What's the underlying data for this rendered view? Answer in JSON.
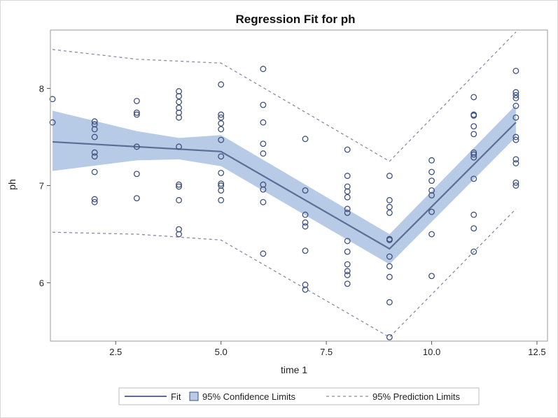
{
  "chart_data": {
    "type": "scatter",
    "title": "Regression Fit for ph",
    "xlabel": "time 1",
    "ylabel": "ph",
    "xlim": [
      0.95,
      12.75
    ],
    "ylim": [
      5.4,
      8.6
    ],
    "x_ticks": [
      2.5,
      5.0,
      7.5,
      10.0,
      12.5
    ],
    "x_tick_labels": [
      "2.5",
      "5.0",
      "7.5",
      "10.0",
      "12.5"
    ],
    "y_ticks": [
      6,
      7,
      8
    ],
    "y_tick_labels": [
      "6",
      "7",
      "8"
    ],
    "grid": false,
    "legend_position": "bottom",
    "colors": {
      "fit": "#5b6f96",
      "confidence": "#b7cbe6",
      "prediction": "#8a8aa8",
      "points": "#3e507c"
    },
    "knots_x": [
      1,
      3,
      5,
      9,
      12
    ],
    "series": [
      {
        "name": "Fit",
        "kind": "line",
        "x": [
          1,
          3,
          5,
          9,
          12
        ],
        "y": [
          7.45,
          7.4,
          7.35,
          6.35,
          7.65
        ]
      },
      {
        "name": "95% Confidence Limits",
        "kind": "band",
        "x": [
          1,
          3,
          4,
          5,
          9,
          12
        ],
        "lower": [
          7.15,
          7.26,
          7.27,
          7.2,
          6.19,
          7.5
        ],
        "upper": [
          7.77,
          7.56,
          7.49,
          7.52,
          6.5,
          7.83
        ]
      },
      {
        "name": "95% Prediction Limits",
        "kind": "dashed",
        "x": [
          1,
          3,
          5,
          9,
          12
        ],
        "lower": [
          6.52,
          6.5,
          6.44,
          5.44,
          6.76
        ],
        "upper": [
          8.4,
          8.3,
          8.26,
          7.25,
          8.58
        ]
      },
      {
        "name": "observations",
        "kind": "scatter",
        "points": [
          [
            1,
            7.89
          ],
          [
            1,
            7.65
          ],
          [
            2,
            7.66
          ],
          [
            2,
            7.63
          ],
          [
            2,
            7.58
          ],
          [
            2,
            7.5
          ],
          [
            2,
            7.34
          ],
          [
            2,
            7.3
          ],
          [
            2,
            7.14
          ],
          [
            2,
            6.86
          ],
          [
            2,
            6.83
          ],
          [
            3,
            7.87
          ],
          [
            3,
            7.75
          ],
          [
            3,
            7.73
          ],
          [
            3,
            7.4
          ],
          [
            3,
            7.12
          ],
          [
            3,
            6.87
          ],
          [
            4,
            7.97
          ],
          [
            4,
            7.92
          ],
          [
            4,
            7.86
          ],
          [
            4,
            7.8
          ],
          [
            4,
            7.75
          ],
          [
            4,
            7.7
          ],
          [
            4,
            7.4
          ],
          [
            4,
            7.01
          ],
          [
            4,
            6.99
          ],
          [
            4,
            6.85
          ],
          [
            4,
            6.55
          ],
          [
            4,
            6.5
          ],
          [
            5,
            8.04
          ],
          [
            5,
            7.73
          ],
          [
            5,
            7.7
          ],
          [
            5,
            7.64
          ],
          [
            5,
            7.58
          ],
          [
            5,
            7.47
          ],
          [
            5,
            7.3
          ],
          [
            5,
            7.13
          ],
          [
            5,
            7.02
          ],
          [
            5,
            7.0
          ],
          [
            5,
            6.95
          ],
          [
            5,
            6.85
          ],
          [
            6,
            8.2
          ],
          [
            6,
            7.83
          ],
          [
            6,
            7.65
          ],
          [
            6,
            7.43
          ],
          [
            6,
            7.33
          ],
          [
            6,
            7.01
          ],
          [
            6,
            6.96
          ],
          [
            6,
            6.83
          ],
          [
            6,
            6.3
          ],
          [
            7,
            7.48
          ],
          [
            7,
            6.95
          ],
          [
            7,
            6.7
          ],
          [
            7,
            6.62
          ],
          [
            7,
            6.58
          ],
          [
            7,
            6.33
          ],
          [
            7,
            5.98
          ],
          [
            7,
            5.93
          ],
          [
            8,
            7.37
          ],
          [
            8,
            7.1
          ],
          [
            8,
            6.99
          ],
          [
            8,
            6.94
          ],
          [
            8,
            6.88
          ],
          [
            8,
            6.76
          ],
          [
            8,
            6.72
          ],
          [
            8,
            6.43
          ],
          [
            8,
            6.32
          ],
          [
            8,
            6.19
          ],
          [
            8,
            6.12
          ],
          [
            8,
            6.08
          ],
          [
            8,
            5.99
          ],
          [
            9,
            7.1
          ],
          [
            9,
            6.85
          ],
          [
            9,
            6.78
          ],
          [
            9,
            6.72
          ],
          [
            9,
            6.45
          ],
          [
            9,
            6.44
          ],
          [
            9,
            6.27
          ],
          [
            9,
            6.17
          ],
          [
            9,
            6.06
          ],
          [
            9,
            5.8
          ],
          [
            9,
            5.44
          ],
          [
            10,
            7.26
          ],
          [
            10,
            7.14
          ],
          [
            10,
            7.05
          ],
          [
            10,
            6.95
          ],
          [
            10,
            6.9
          ],
          [
            10,
            6.73
          ],
          [
            10,
            6.5
          ],
          [
            10,
            6.07
          ],
          [
            11,
            7.91
          ],
          [
            11,
            7.73
          ],
          [
            11,
            7.72
          ],
          [
            11,
            7.61
          ],
          [
            11,
            7.53
          ],
          [
            11,
            7.34
          ],
          [
            11,
            7.32
          ],
          [
            11,
            7.29
          ],
          [
            11,
            7.07
          ],
          [
            11,
            6.7
          ],
          [
            11,
            6.56
          ],
          [
            11,
            6.32
          ],
          [
            12,
            8.18
          ],
          [
            12,
            7.96
          ],
          [
            12,
            7.93
          ],
          [
            12,
            7.9
          ],
          [
            12,
            7.82
          ],
          [
            12,
            7.7
          ],
          [
            12,
            7.5
          ],
          [
            12,
            7.47
          ],
          [
            12,
            7.27
          ],
          [
            12,
            7.23
          ],
          [
            12,
            7.03
          ],
          [
            12,
            7.0
          ]
        ]
      }
    ],
    "legend": [
      {
        "label": "Fit",
        "icon": "solid-line"
      },
      {
        "label": "95% Confidence Limits",
        "icon": "filled-box"
      },
      {
        "label": "95% Prediction Limits",
        "icon": "dashed-line"
      }
    ]
  }
}
